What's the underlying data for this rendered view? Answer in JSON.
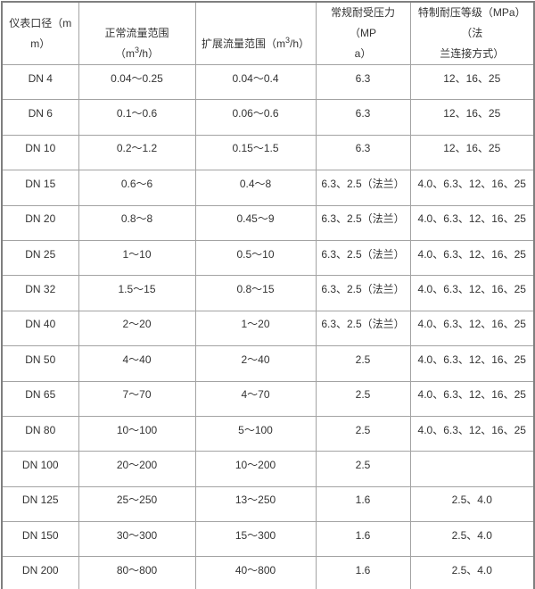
{
  "colors": {
    "background": "#ffffff",
    "text": "#333333",
    "border_inner": "#a3a3a3",
    "border_outer": "#7f7f7f"
  },
  "table": {
    "headers": {
      "diameter": {
        "lines": [
          "仪表口径（m",
          "m）"
        ]
      },
      "normal_flow": {
        "prefix": "正常流量范围（m",
        "sup": "3",
        "suffix": "/h）"
      },
      "extended_flow": {
        "prefix": "扩展流量范围（m",
        "sup": "3",
        "suffix": "/h）"
      },
      "standard_pressure": {
        "lines": [
          "常规耐受压力（MP",
          "a）"
        ]
      },
      "special_pressure": {
        "lines": [
          "特制耐压等级（MPa）（法",
          "兰连接方式）"
        ]
      }
    },
    "rows": [
      [
        "DN 4",
        "0.04～0.25",
        "0.04～0.4",
        "6.3",
        "12、16、25"
      ],
      [
        "DN 6",
        "0.1～0.6",
        "0.06～0.6",
        "6.3",
        "12、16、25"
      ],
      [
        "DN 10",
        "0.2～1.2",
        "0.15～1.5",
        "6.3",
        "12、16、25"
      ],
      [
        "DN 15",
        "0.6～6",
        "0.4～8",
        "6.3、2.5（法兰）",
        "4.0、6.3、12、16、25"
      ],
      [
        "DN 20",
        "0.8～8",
        "0.45～9",
        "6.3、2.5（法兰）",
        "4.0、6.3、12、16、25"
      ],
      [
        "DN 25",
        "1～10",
        "0.5～10",
        "6.3、2.5（法兰）",
        "4.0、6.3、12、16、25"
      ],
      [
        "DN 32",
        "1.5～15",
        "0.8～15",
        "6.3、2.5（法兰）",
        "4.0、6.3、12、16、25"
      ],
      [
        "DN 40",
        "2～20",
        "1～20",
        "6.3、2.5（法兰）",
        "4.0、6.3、12、16、25"
      ],
      [
        "DN 50",
        "4～40",
        "2～40",
        "2.5",
        "4.0、6.3、12、16、25"
      ],
      [
        "DN 65",
        "7～70",
        "4～70",
        "2.5",
        "4.0、6.3、12、16、25"
      ],
      [
        "DN 80",
        "10～100",
        "5～100",
        "2.5",
        "4.0、6.3、12、16、25"
      ],
      [
        "DN 100",
        "20～200",
        "10～200",
        "2.5",
        ""
      ],
      [
        "DN 125",
        "25～250",
        "13～250",
        "1.6",
        "2.5、4.0"
      ],
      [
        "DN 150",
        "30～300",
        "15～300",
        "1.6",
        "2.5、4.0"
      ],
      [
        "DN 200",
        "80～800",
        "40～800",
        "1.6",
        "2.5、4.0"
      ]
    ]
  }
}
